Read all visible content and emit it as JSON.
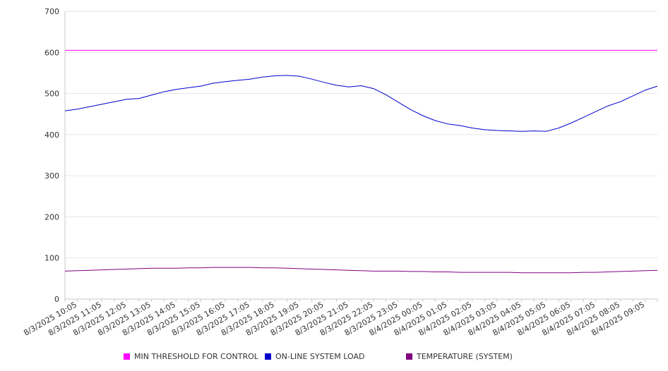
{
  "chart_data": {
    "type": "line",
    "title": "",
    "xlabel": "",
    "ylabel": "",
    "ylim": [
      0,
      700
    ],
    "yticks": [
      0,
      100,
      200,
      300,
      400,
      500,
      600,
      700
    ],
    "grid": true,
    "legend_position": "bottom",
    "x_tick_labels": [
      "8/3/2025 10:05",
      "8/3/2025 11:05",
      "8/3/2025 12:05",
      "8/3/2025 13:05",
      "8/3/2025 14:05",
      "8/3/2025 15:05",
      "8/3/2025 16:05",
      "8/3/2025 17:05",
      "8/3/2025 18:05",
      "8/3/2025 19:05",
      "8/3/2025 20:05",
      "8/3/2025 21:05",
      "8/3/2025 22:05",
      "8/3/2025 23:05",
      "8/4/2025 00:05",
      "8/4/2025 01:05",
      "8/4/2025 02:05",
      "8/4/2025 03:05",
      "8/4/2025 04:05",
      "8/4/2025 05:05",
      "8/4/2025 06:05",
      "8/4/2025 07:05",
      "8/4/2025 08:05",
      "8/4/2025 09:05"
    ],
    "x": [
      "8/3/2025 09:35",
      "8/3/2025 10:05",
      "8/3/2025 10:35",
      "8/3/2025 11:05",
      "8/3/2025 11:35",
      "8/3/2025 12:05",
      "8/3/2025 12:35",
      "8/3/2025 13:05",
      "8/3/2025 13:35",
      "8/3/2025 14:05",
      "8/3/2025 14:35",
      "8/3/2025 15:05",
      "8/3/2025 15:35",
      "8/3/2025 16:05",
      "8/3/2025 16:35",
      "8/3/2025 17:05",
      "8/3/2025 17:35",
      "8/3/2025 18:05",
      "8/3/2025 18:35",
      "8/3/2025 19:05",
      "8/3/2025 19:35",
      "8/3/2025 20:05",
      "8/3/2025 20:35",
      "8/3/2025 21:05",
      "8/3/2025 21:35",
      "8/3/2025 22:05",
      "8/3/2025 22:35",
      "8/3/2025 23:05",
      "8/3/2025 23:35",
      "8/4/2025 00:05",
      "8/4/2025 00:35",
      "8/4/2025 01:05",
      "8/4/2025 01:35",
      "8/4/2025 02:05",
      "8/4/2025 02:35",
      "8/4/2025 03:05",
      "8/4/2025 03:35",
      "8/4/2025 04:05",
      "8/4/2025 04:35",
      "8/4/2025 05:05",
      "8/4/2025 05:35",
      "8/4/2025 06:05",
      "8/4/2025 06:35",
      "8/4/2025 07:05",
      "8/4/2025 07:35",
      "8/4/2025 08:05",
      "8/4/2025 08:35",
      "8/4/2025 09:05",
      "8/4/2025 09:35"
    ],
    "series": [
      {
        "name": "MIN THRESHOLD FOR CONTROL",
        "color": "#ff00ff",
        "values": [
          605,
          605,
          605,
          605,
          605,
          605,
          605,
          605,
          605,
          605,
          605,
          605,
          605,
          605,
          605,
          605,
          605,
          605,
          605,
          605,
          605,
          605,
          605,
          605,
          605,
          605,
          605,
          605,
          605,
          605,
          605,
          605,
          605,
          605,
          605,
          605,
          605,
          605,
          605,
          605,
          605,
          605,
          605,
          605,
          605,
          605,
          605,
          605,
          605
        ]
      },
      {
        "name": "ON-LINE SYSTEM LOAD",
        "color": "#0000cc",
        "values": [
          458,
          462,
          468,
          474,
          480,
          486,
          488,
          496,
          504,
          510,
          514,
          518,
          525,
          529,
          532,
          535,
          540,
          543,
          544,
          542,
          535,
          527,
          520,
          516,
          519,
          512,
          497,
          479,
          461,
          446,
          434,
          426,
          422,
          416,
          412,
          410,
          409,
          408,
          409,
          408,
          416,
          428,
          442,
          456,
          470,
          480,
          494,
          508,
          518
        ]
      },
      {
        "name": "TEMPERATURE (SYSTEM)",
        "color": "#800080",
        "values": [
          68,
          69,
          70,
          71,
          72,
          73,
          74,
          75,
          75,
          75,
          76,
          76,
          77,
          77,
          77,
          77,
          76,
          76,
          75,
          74,
          73,
          72,
          71,
          70,
          69,
          68,
          68,
          68,
          67,
          67,
          66,
          66,
          65,
          65,
          65,
          65,
          65,
          64,
          64,
          64,
          64,
          64,
          65,
          65,
          66,
          67,
          68,
          69,
          70
        ]
      }
    ]
  }
}
